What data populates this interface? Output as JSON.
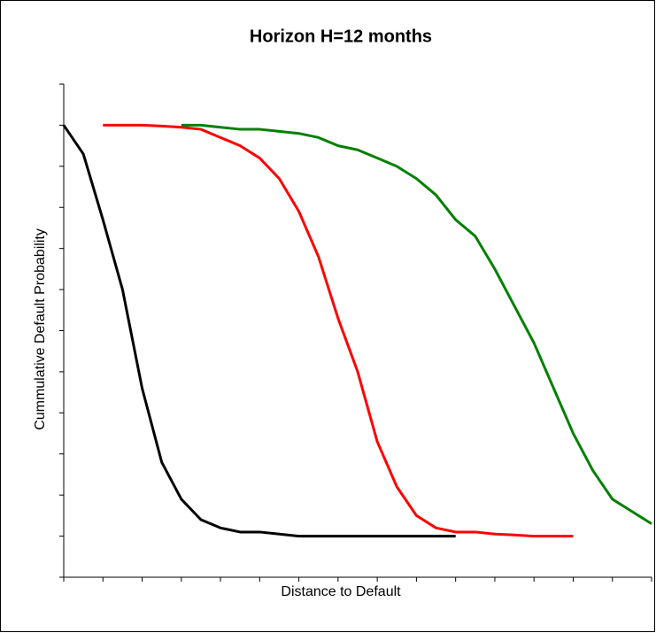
{
  "chart_data": {
    "type": "line",
    "title": "Horizon H=12 months",
    "x_label": "Distance to Default",
    "y_label": "Cummulative Default Probability",
    "xlim": [
      0,
      15
    ],
    "xticks": [
      0,
      1,
      2,
      3,
      4,
      5,
      6,
      7,
      8,
      9,
      10,
      11,
      12,
      13,
      14,
      15
    ],
    "ylim": [
      -0.1,
      1.1
    ],
    "yticks": [
      -0.1,
      0,
      0.1,
      0.2,
      0.3,
      0.4,
      0.5,
      0.6,
      0.7,
      0.8,
      0.9,
      1,
      1.1
    ],
    "x": [
      0,
      0.5,
      1,
      1.5,
      2,
      2.5,
      3,
      3.5,
      4,
      4.5,
      5,
      5.5,
      6,
      6.5,
      7,
      7.5,
      8,
      8.5,
      9,
      9.5,
      10,
      10.5,
      11,
      11.5,
      12,
      12.5,
      13,
      13.5,
      14,
      14.5,
      15
    ],
    "series": [
      {
        "color": "#000000",
        "values": [
          1.0,
          0.93,
          0.77,
          0.6,
          0.36,
          0.18,
          0.09,
          0.04,
          0.02,
          0.01,
          0.01,
          0.005,
          0,
          0,
          0,
          0,
          0,
          0,
          0,
          0,
          0,
          null,
          null,
          null,
          null,
          null,
          null,
          null,
          null,
          null,
          null
        ]
      },
      {
        "color": "#ff0000",
        "values": [
          null,
          null,
          1.0,
          1.0,
          1.0,
          0.998,
          0.995,
          0.99,
          0.97,
          0.95,
          0.92,
          0.87,
          0.79,
          0.68,
          0.53,
          0.4,
          0.23,
          0.12,
          0.05,
          0.02,
          0.01,
          0.01,
          0.005,
          0.003,
          0,
          0,
          0,
          null,
          null,
          null,
          null
        ]
      },
      {
        "color": "#008000",
        "values": [
          null,
          null,
          null,
          null,
          null,
          null,
          1.0,
          1.0,
          0.995,
          0.99,
          0.99,
          0.985,
          0.98,
          0.97,
          0.95,
          0.94,
          0.92,
          0.9,
          0.87,
          0.83,
          0.77,
          0.73,
          0.65,
          0.56,
          0.47,
          0.36,
          0.25,
          0.16,
          0.09,
          0.06,
          0.03
        ]
      }
    ]
  }
}
